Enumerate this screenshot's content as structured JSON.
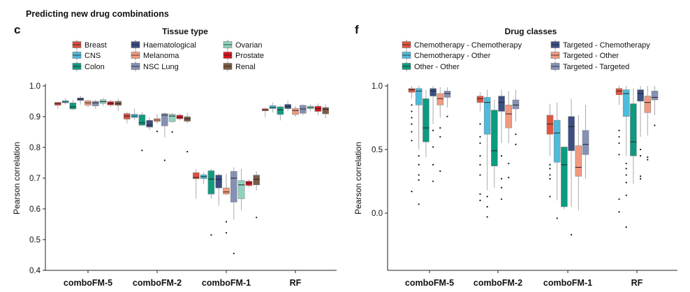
{
  "figure_title": "Predicting new drug combinations",
  "chart_data": [
    {
      "panel": "c",
      "type": "box",
      "legend_title": "Tissue type",
      "ylabel": "Pearson correlation",
      "xlabel": "",
      "ylim": [
        0.4,
        1.0
      ],
      "yticks": [
        "0.4",
        "0.5",
        "0.6",
        "0.7",
        "0.8",
        "0.9",
        "1.0"
      ],
      "grid": false,
      "legend_placement": "top",
      "categories": [
        "comboFM-5",
        "comboFM-2",
        "comboFM-1",
        "RF"
      ],
      "series": [
        {
          "name": "Breast",
          "color": "#d9503f",
          "stats": [
            [
              0.925,
              0.937,
              0.942,
              0.947,
              0.948
            ],
            [
              0.878,
              0.892,
              0.902,
              0.91,
              0.915
            ],
            [
              0.633,
              0.698,
              0.702,
              0.718,
              0.73
            ],
            [
              0.898,
              0.919,
              0.922,
              0.926,
              0.93
            ]
          ],
          "outliers": [
            [],
            [],
            [],
            []
          ]
        },
        {
          "name": "CNS",
          "color": "#4db8d6",
          "stats": [
            [
              0.94,
              0.945,
              0.948,
              0.952,
              0.96
            ],
            [
              0.89,
              0.897,
              0.902,
              0.908,
              0.926
            ],
            [
              0.68,
              0.698,
              0.705,
              0.711,
              0.72
            ],
            [
              0.914,
              0.926,
              0.93,
              0.936,
              0.946
            ]
          ],
          "outliers": [
            [],
            [],
            [],
            []
          ]
        },
        {
          "name": "Colon",
          "color": "#0f9b80",
          "stats": [
            [
              0.922,
              0.925,
              0.932,
              0.945,
              0.955
            ],
            [
              0.87,
              0.872,
              0.88,
              0.906,
              0.915
            ],
            [
              0.633,
              0.648,
              0.697,
              0.724,
              0.73
            ],
            [
              0.888,
              0.907,
              0.922,
              0.932,
              0.936
            ]
          ],
          "outliers": [
            [],
            [
              0.79
            ],
            [
              0.515
            ],
            []
          ]
        },
        {
          "name": "Haematological",
          "color": "#3a4d7f",
          "stats": [
            [
              0.94,
              0.953,
              0.957,
              0.961,
              0.968
            ],
            [
              0.857,
              0.866,
              0.873,
              0.888,
              0.898
            ],
            [
              0.61,
              0.668,
              0.696,
              0.71,
              0.715
            ],
            [
              0.918,
              0.926,
              0.933,
              0.94,
              0.952
            ]
          ],
          "outliers": [
            [],
            [],
            [],
            []
          ]
        },
        {
          "name": "Melanoma",
          "color": "#f19a7e",
          "stats": [
            [
              0.93,
              0.937,
              0.945,
              0.952,
              0.955
            ],
            [
              0.876,
              0.884,
              0.889,
              0.894,
              0.908
            ],
            [
              0.645,
              0.648,
              0.655,
              0.668,
              0.715
            ],
            [
              0.9,
              0.907,
              0.92,
              0.927,
              0.935
            ]
          ],
          "outliers": [
            [],
            [
              0.852
            ],
            [
              0.558,
              0.522
            ],
            []
          ]
        },
        {
          "name": "NSC Lung",
          "color": "#8490b5",
          "stats": [
            [
              0.925,
              0.935,
              0.945,
              0.95,
              0.955
            ],
            [
              0.833,
              0.87,
              0.905,
              0.91,
              0.914
            ],
            [
              0.565,
              0.622,
              0.7,
              0.722,
              0.735
            ],
            [
              0.905,
              0.911,
              0.925,
              0.937,
              0.94
            ]
          ],
          "outliers": [
            [],
            [
              0.758
            ],
            [
              0.455
            ],
            []
          ]
        },
        {
          "name": "Ovarian",
          "color": "#8fd3bf",
          "stats": [
            [
              0.935,
              0.943,
              0.949,
              0.955,
              0.96
            ],
            [
              0.88,
              0.884,
              0.902,
              0.908,
              0.912
            ],
            [
              0.595,
              0.633,
              0.678,
              0.692,
              0.73
            ],
            [
              0.918,
              0.926,
              0.93,
              0.934,
              0.94
            ]
          ],
          "outliers": [
            [],
            [
              0.85
            ],
            [],
            []
          ]
        },
        {
          "name": "Prostate",
          "color": "#d7141d",
          "stats": [
            [
              0.932,
              0.938,
              0.943,
              0.949,
              0.955
            ],
            [
              0.887,
              0.893,
              0.898,
              0.905,
              0.91
            ],
            [
              0.67,
              0.676,
              0.684,
              0.69,
              0.695
            ],
            [
              0.905,
              0.917,
              0.926,
              0.934,
              0.943
            ]
          ],
          "outliers": [
            [],
            [],
            [],
            []
          ]
        },
        {
          "name": "Renal",
          "color": "#7a5c45",
          "stats": [
            [
              0.918,
              0.937,
              0.942,
              0.95,
              0.958
            ],
            [
              0.878,
              0.885,
              0.893,
              0.9,
              0.913
            ],
            [
              0.66,
              0.678,
              0.696,
              0.71,
              0.722
            ],
            [
              0.895,
              0.909,
              0.924,
              0.93,
              0.94
            ]
          ],
          "outliers": [
            [],
            [
              0.786
            ],
            [
              0.572
            ],
            []
          ]
        }
      ]
    },
    {
      "panel": "f",
      "type": "box",
      "legend_title": "Drug classes",
      "ylabel": "Pearson correlation",
      "xlabel": "",
      "ylim": [
        -0.45,
        1.0
      ],
      "yticks": [
        "0.0",
        "0.5",
        "1.0"
      ],
      "grid": false,
      "legend_placement": "top",
      "categories": [
        "comboFM-5",
        "comboFM-2",
        "comboFM-1",
        "RF"
      ],
      "series": [
        {
          "name": "Chemotherapy - Chemotherapy",
          "color": "#e4533f",
          "stats": [
            [
              0.9,
              0.95,
              0.97,
              0.98,
              1.0
            ],
            [
              0.8,
              0.87,
              0.9,
              0.92,
              0.95
            ],
            [
              0.45,
              0.62,
              0.7,
              0.77,
              0.86
            ],
            [
              0.85,
              0.93,
              0.96,
              0.98,
              1.0
            ]
          ],
          "outliers": [
            [
              0.17,
              0.57,
              0.64,
              0.7,
              0.75,
              0.8,
              0.85
            ],
            [
              0.1,
              0.15,
              0.3,
              0.38,
              0.45,
              0.55,
              0.6,
              0.7
            ],
            [
              0.13,
              0.27,
              0.3,
              0.35,
              0.38
            ],
            [
              0.01,
              0.11,
              0.46,
              0.55,
              0.6,
              0.65
            ]
          ]
        },
        {
          "name": "Chemotherapy - Other",
          "color": "#4cbbdc",
          "stats": [
            [
              0.5,
              0.85,
              0.96,
              0.98,
              1.0
            ],
            [
              0.18,
              0.62,
              0.87,
              0.91,
              0.97
            ],
            [
              0.1,
              0.4,
              0.63,
              0.73,
              0.87
            ],
            [
              0.45,
              0.76,
              0.94,
              0.97,
              1.0
            ]
          ],
          "outliers": [
            [
              0.07,
              0.26,
              0.3,
              0.38,
              0.45
            ],
            [
              -0.03,
              0.05,
              0.13
            ],
            [
              -0.04
            ],
            [
              -0.11,
              0.14,
              0.24,
              0.3,
              0.35,
              0.39
            ]
          ]
        },
        {
          "name": "Other - Other",
          "color": "#0b9b7f",
          "stats": [
            [
              0.44,
              0.56,
              0.67,
              0.9,
              0.97
            ],
            [
              0.2,
              0.37,
              0.49,
              0.81,
              0.89
            ],
            [
              0.03,
              0.05,
              0.38,
              0.52,
              0.52
            ],
            [
              0.23,
              0.45,
              0.56,
              0.86,
              0.98
            ]
          ],
          "outliers": [
            [],
            [],
            [],
            []
          ]
        },
        {
          "name": "Targeted - Chemotherapy",
          "color": "#3b4f83",
          "stats": [
            [
              0.7,
              0.92,
              0.96,
              0.98,
              1.0
            ],
            [
              0.55,
              0.8,
              0.87,
              0.92,
              0.97
            ],
            [
              0.05,
              0.49,
              0.68,
              0.76,
              0.9
            ],
            [
              0.6,
              0.88,
              0.94,
              0.97,
              1.0
            ]
          ],
          "outliers": [
            [
              0.25,
              0.38,
              0.52,
              0.65
            ],
            [
              0.11,
              0.2,
              0.27,
              0.45
            ],
            [
              -0.17
            ],
            [
              0.27,
              0.29,
              0.45,
              0.5
            ]
          ]
        },
        {
          "name": "Targeted - Other",
          "color": "#f19a80",
          "stats": [
            [
              0.75,
              0.85,
              0.9,
              0.94,
              0.99
            ],
            [
              0.55,
              0.67,
              0.78,
              0.85,
              0.96
            ],
            [
              0.02,
              0.29,
              0.36,
              0.53,
              0.77
            ],
            [
              0.61,
              0.79,
              0.87,
              0.92,
              1.0
            ]
          ],
          "outliers": [
            [
              0.33,
              0.6,
              0.67
            ],
            [
              0.28,
              0.39
            ],
            [],
            [
              0.42,
              0.44
            ]
          ]
        },
        {
          "name": "Targeted - Targeted",
          "color": "#8591b6",
          "stats": [
            [
              0.83,
              0.91,
              0.94,
              0.96,
              0.99
            ],
            [
              0.72,
              0.82,
              0.85,
              0.89,
              0.97
            ],
            [
              0.27,
              0.46,
              0.54,
              0.65,
              0.85
            ],
            [
              0.77,
              0.89,
              0.91,
              0.96,
              1.0
            ]
          ],
          "outliers": [
            [
              0.76
            ],
            [
              0.54,
              0.62
            ],
            [],
            [
              0.69
            ]
          ]
        }
      ]
    }
  ]
}
